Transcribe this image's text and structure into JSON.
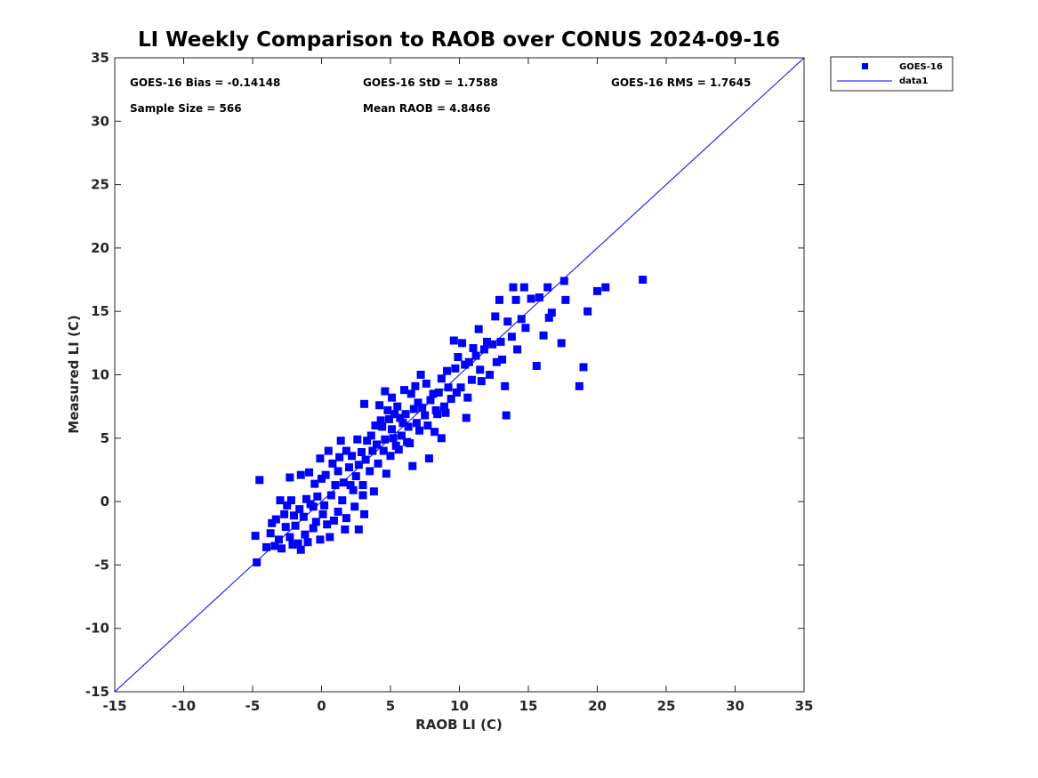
{
  "chart_data": {
    "type": "scatter",
    "title": "LI Weekly Comparison to RAOB over CONUS 2024-09-16",
    "xlabel": "RAOB LI (C)",
    "ylabel": "Measured LI (C)",
    "xlim": [
      -15,
      35
    ],
    "ylim": [
      -15,
      35
    ],
    "xticks": [
      -15,
      -10,
      -5,
      0,
      5,
      10,
      15,
      20,
      25,
      30,
      35
    ],
    "yticks": [
      -15,
      -10,
      -5,
      0,
      5,
      10,
      15,
      20,
      25,
      30,
      35
    ],
    "grid": false,
    "legend": {
      "placement": "outside-top-right",
      "entries": [
        "GOES-16",
        "data1"
      ]
    },
    "annotations": [
      "GOES-16 Bias = -0.14148",
      "GOES-16 StD = 1.7588",
      "GOES-16 RMS = 1.7645",
      "Sample Size = 566",
      "Mean RAOB = 4.8466"
    ],
    "series": [
      {
        "name": "GOES-16",
        "kind": "scatter",
        "marker": "square",
        "color": "#0000ff",
        "points": [
          [
            23.3,
            17.5
          ],
          [
            20.6,
            16.9
          ],
          [
            20.0,
            16.6
          ],
          [
            19.3,
            15.0
          ],
          [
            19.0,
            10.6
          ],
          [
            18.7,
            9.1
          ],
          [
            17.4,
            12.5
          ],
          [
            17.7,
            15.9
          ],
          [
            17.6,
            17.4
          ],
          [
            15.6,
            10.7
          ],
          [
            16.1,
            13.1
          ],
          [
            16.7,
            14.9
          ],
          [
            16.4,
            16.9
          ],
          [
            16.5,
            14.5
          ],
          [
            15.8,
            16.1
          ],
          [
            15.2,
            16.0
          ],
          [
            14.7,
            16.9
          ],
          [
            13.9,
            16.9
          ],
          [
            14.1,
            15.9
          ],
          [
            14.5,
            14.4
          ],
          [
            14.8,
            13.7
          ],
          [
            13.4,
            6.8
          ],
          [
            10.5,
            6.6
          ],
          [
            -4.5,
            1.7
          ],
          [
            -4.7,
            -4.8
          ],
          [
            -4.8,
            -2.7
          ],
          [
            12.6,
            14.6
          ],
          [
            12.9,
            15.9
          ],
          [
            13.5,
            14.2
          ],
          [
            13.8,
            13.0
          ],
          [
            14.2,
            12.0
          ],
          [
            13.1,
            11.2
          ],
          [
            13.3,
            9.1
          ],
          [
            12.2,
            10.0
          ],
          [
            11.6,
            9.5
          ],
          [
            12.0,
            12.6
          ],
          [
            11.4,
            13.6
          ],
          [
            11.0,
            12.1
          ],
          [
            10.7,
            11.0
          ],
          [
            10.2,
            12.5
          ],
          [
            9.6,
            12.7
          ],
          [
            9.9,
            11.4
          ],
          [
            9.1,
            10.3
          ],
          [
            8.7,
            9.7
          ],
          [
            10.1,
            9.0
          ],
          [
            10.6,
            8.2
          ],
          [
            9.4,
            8.1
          ],
          [
            8.9,
            7.5
          ],
          [
            8.4,
            6.9
          ],
          [
            8.1,
            8.5
          ],
          [
            7.6,
            9.3
          ],
          [
            7.2,
            10.0
          ],
          [
            6.8,
            9.1
          ],
          [
            6.5,
            8.5
          ],
          [
            7.0,
            7.8
          ],
          [
            7.5,
            6.8
          ],
          [
            8.2,
            5.5
          ],
          [
            8.7,
            5.0
          ],
          [
            7.8,
            3.4
          ],
          [
            6.6,
            2.8
          ],
          [
            6.2,
            4.7
          ],
          [
            5.9,
            6.2
          ],
          [
            5.5,
            7.5
          ],
          [
            5.1,
            8.2
          ],
          [
            4.6,
            8.7
          ],
          [
            4.2,
            7.6
          ],
          [
            4.9,
            6.5
          ],
          [
            4.4,
            5.9
          ],
          [
            3.9,
            6.0
          ],
          [
            3.6,
            5.2
          ],
          [
            4.0,
            4.5
          ],
          [
            4.5,
            4.0
          ],
          [
            5.0,
            3.6
          ],
          [
            5.4,
            4.4
          ],
          [
            5.8,
            5.2
          ],
          [
            6.1,
            6.9
          ],
          [
            6.9,
            6.2
          ],
          [
            3.1,
            7.7
          ],
          [
            3.3,
            4.8
          ],
          [
            2.9,
            3.9
          ],
          [
            2.6,
            4.9
          ],
          [
            2.2,
            3.6
          ],
          [
            1.8,
            4.0
          ],
          [
            2.0,
            2.7
          ],
          [
            2.5,
            2.0
          ],
          [
            3.0,
            1.3
          ],
          [
            3.5,
            2.4
          ],
          [
            4.1,
            3.0
          ],
          [
            4.7,
            2.2
          ],
          [
            3.8,
            0.8
          ],
          [
            3.0,
            0.5
          ],
          [
            2.3,
            0.9
          ],
          [
            1.6,
            1.5
          ],
          [
            1.2,
            2.4
          ],
          [
            0.8,
            3.0
          ],
          [
            1.4,
            4.8
          ],
          [
            0.5,
            4.0
          ],
          [
            -0.1,
            3.4
          ],
          [
            0.3,
            2.1
          ],
          [
            -0.5,
            1.4
          ],
          [
            -0.9,
            2.3
          ],
          [
            -1.5,
            2.1
          ],
          [
            -2.3,
            1.9
          ],
          [
            -0.3,
            0.4
          ],
          [
            0.2,
            -0.3
          ],
          [
            0.7,
            0.5
          ],
          [
            1.2,
            -0.8
          ],
          [
            1.8,
            -1.3
          ],
          [
            2.7,
            -2.2
          ],
          [
            1.7,
            -2.2
          ],
          [
            0.9,
            -1.5
          ],
          [
            0.1,
            -1.0
          ],
          [
            -0.6,
            -0.4
          ],
          [
            -1.1,
            0.2
          ],
          [
            -1.6,
            -0.6
          ],
          [
            -2.0,
            -1.1
          ],
          [
            -2.5,
            -0.3
          ],
          [
            -3.0,
            0.1
          ],
          [
            -2.6,
            -2.0
          ],
          [
            -3.3,
            -1.4
          ],
          [
            -3.7,
            -2.5
          ],
          [
            -3.1,
            -3.0
          ],
          [
            -2.3,
            -2.8
          ],
          [
            -1.7,
            -3.3
          ],
          [
            -1.2,
            -2.6
          ],
          [
            -0.6,
            -2.1
          ],
          [
            -0.1,
            -3.0
          ],
          [
            0.6,
            -2.8
          ],
          [
            -1.5,
            -3.8
          ],
          [
            -2.9,
            -3.7
          ],
          [
            -3.4,
            -3.5
          ],
          [
            -2.1,
            -3.4
          ],
          [
            -1.0,
            -3.2
          ],
          [
            -0.4,
            -1.6
          ],
          [
            0.4,
            -1.8
          ],
          [
            1.5,
            0.1
          ],
          [
            2.4,
            -0.4
          ],
          [
            3.1,
            -1.0
          ],
          [
            1.0,
            1.3
          ],
          [
            -1.9,
            -1.9
          ],
          [
            -2.7,
            -1.0
          ],
          [
            -1.3,
            -1.2
          ],
          [
            5.2,
            5.0
          ],
          [
            5.6,
            4.1
          ],
          [
            6.3,
            5.9
          ],
          [
            6.7,
            7.3
          ],
          [
            7.3,
            7.4
          ],
          [
            7.9,
            8.0
          ],
          [
            8.5,
            8.6
          ],
          [
            9.2,
            9.0
          ],
          [
            9.7,
            10.5
          ],
          [
            10.4,
            10.8
          ],
          [
            11.2,
            11.5
          ],
          [
            11.8,
            12.0
          ],
          [
            12.4,
            12.4
          ],
          [
            6.0,
            8.8
          ],
          [
            5.3,
            6.9
          ],
          [
            4.8,
            7.2
          ],
          [
            4.3,
            6.4
          ],
          [
            3.7,
            4.0
          ],
          [
            3.2,
            3.3
          ],
          [
            2.7,
            2.9
          ],
          [
            4.6,
            4.9
          ],
          [
            5.1,
            5.7
          ],
          [
            5.7,
            6.6
          ],
          [
            6.4,
            4.6
          ],
          [
            7.1,
            5.6
          ],
          [
            7.7,
            6.0
          ],
          [
            8.3,
            7.2
          ],
          [
            9.0,
            7.0
          ],
          [
            9.8,
            8.6
          ],
          [
            10.9,
            9.6
          ],
          [
            11.5,
            10.4
          ],
          [
            12.7,
            11.0
          ],
          [
            13.0,
            12.6
          ],
          [
            2.1,
            1.3
          ],
          [
            1.3,
            3.5
          ],
          [
            0.0,
            1.8
          ],
          [
            -0.8,
            -0.2
          ],
          [
            -2.2,
            0.1
          ],
          [
            -3.6,
            -1.7
          ],
          [
            -4.0,
            -3.6
          ]
        ]
      },
      {
        "name": "data1",
        "kind": "line",
        "color": "#0000ff",
        "points": [
          [
            -15,
            -15
          ],
          [
            35,
            35
          ]
        ]
      }
    ]
  }
}
